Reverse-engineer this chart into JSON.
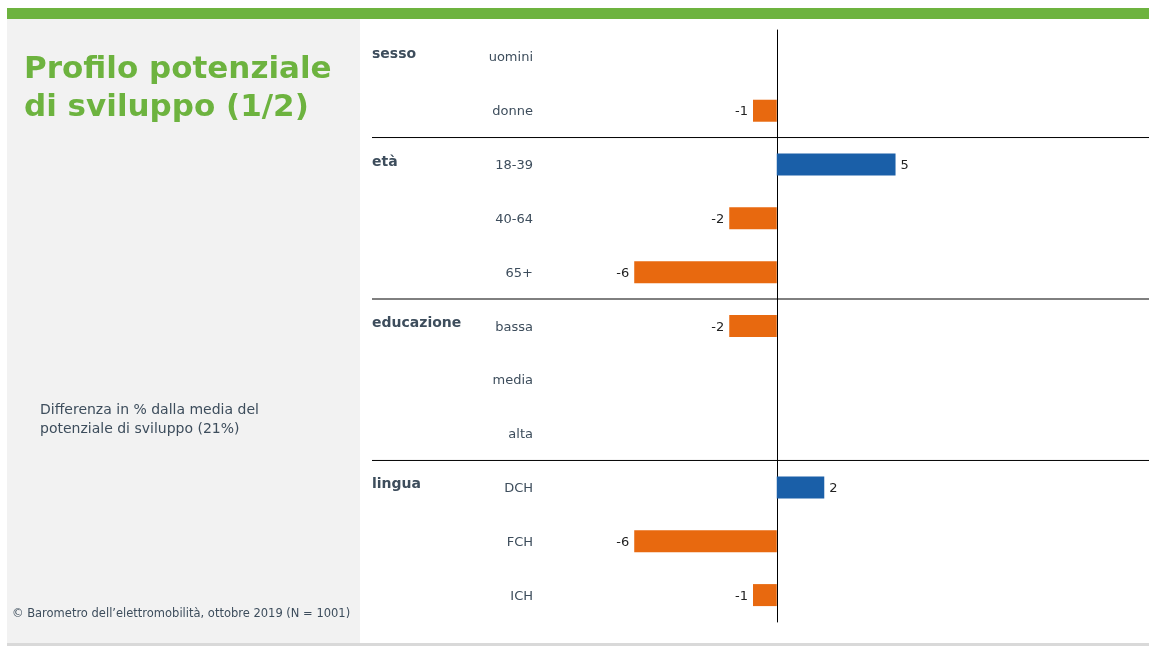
{
  "chart_data": {
    "type": "bar",
    "orientation": "horizontal",
    "title": "Profilo potenziale di sviluppo (1/2)",
    "subtitle": "Differenza in % dalla media del potenziale di sviluppo (21%)",
    "categories": [
      "uomini",
      "donne",
      "18-39",
      "40-64",
      "65+",
      "bassa",
      "media",
      "alta",
      "DCH",
      "FCH",
      "ICH"
    ],
    "values": [
      0,
      -1,
      5,
      -2,
      -6,
      -2,
      0,
      0,
      2,
      -6,
      -1
    ],
    "value_labels": [
      null,
      "-1",
      "5",
      "-2",
      "-6",
      "-2",
      null,
      null,
      "2",
      "-6",
      "-1"
    ],
    "colors": [
      "#e8690f",
      "#e8690f",
      "#1a5fa8",
      "#e8690f",
      "#e8690f",
      "#e8690f",
      "#e8690f",
      "#e8690f",
      "#1a5fa8",
      "#e8690f",
      "#e8690f"
    ],
    "grid": false,
    "annotations": [
      "sesso",
      "età",
      "educazione",
      "lingua",
      "© Barometro dell’elettromobilità, ottobre 2019 (N = 1001)"
    ]
  }
}
